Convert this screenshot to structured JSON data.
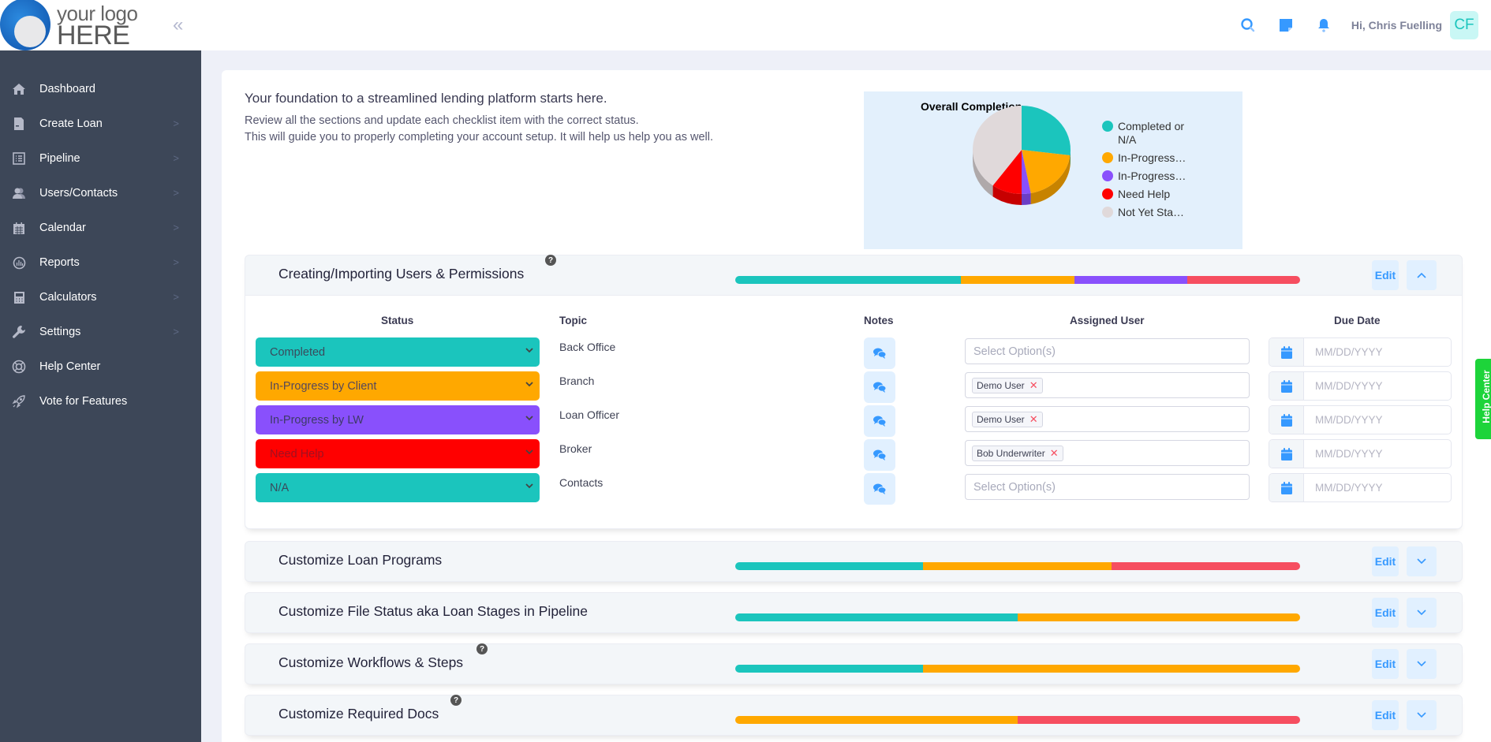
{
  "header": {
    "logo_line1": "your logo",
    "logo_line2": "HERE",
    "collapse_icon": "double-chevron-left",
    "greeting": "Hi, Chris Fuelling",
    "avatar_initials": "CF",
    "icons": [
      "search-icon",
      "sticky-note-icon",
      "bell-icon"
    ]
  },
  "sidebar": {
    "items": [
      {
        "label": "Dashboard",
        "icon": "home-icon",
        "has_submenu": false
      },
      {
        "label": "Create Loan",
        "icon": "document-icon",
        "has_submenu": true
      },
      {
        "label": "Pipeline",
        "icon": "list-icon",
        "has_submenu": true
      },
      {
        "label": "Users/Contacts",
        "icon": "users-icon",
        "has_submenu": true
      },
      {
        "label": "Calendar",
        "icon": "calendar-icon",
        "has_submenu": true
      },
      {
        "label": "Reports",
        "icon": "chart-icon",
        "has_submenu": true
      },
      {
        "label": "Calculators",
        "icon": "calculator-icon",
        "has_submenu": true
      },
      {
        "label": "Settings",
        "icon": "wrench-icon",
        "has_submenu": true
      },
      {
        "label": "Help Center",
        "icon": "lifebuoy-icon",
        "has_submenu": false
      },
      {
        "label": "Vote for Features",
        "icon": "rocket-icon",
        "has_submenu": false
      }
    ]
  },
  "intro": {
    "title": "Your foundation to a streamlined lending platform starts here.",
    "line1": "Review all the sections and update each checklist item with the correct status.",
    "line2": "This will guide you to properly completing your account setup. It will help us help you as well."
  },
  "chart_data": {
    "type": "pie",
    "title": "Overall Completion",
    "legend_position": "right",
    "categories": [
      "Completed or N/A",
      "In-Progress…",
      "In-Progress…",
      "Need Help",
      "Not Yet Sta…"
    ],
    "values": [
      27,
      20,
      3,
      10,
      40
    ],
    "colors": [
      "#1bc5bd",
      "#ffa800",
      "#8950fc",
      "#ff0000",
      "#e0d9da"
    ]
  },
  "colors": {
    "completed": "#1bc5bd",
    "in_progress_client": "#ffa800",
    "in_progress_lw": "#8950fc",
    "need_help": "#ff0000",
    "bar_red": "#f64e60",
    "accent": "#3699ff"
  },
  "sections": [
    {
      "title": "Creating/Importing Users & Permissions",
      "has_help": true,
      "expanded": true,
      "edit_label": "Edit",
      "progress": [
        {
          "status": "completed",
          "pct": 40
        },
        {
          "status": "in_progress_client",
          "pct": 20
        },
        {
          "status": "in_progress_lw",
          "pct": 20
        },
        {
          "status": "bar_red",
          "pct": 20
        }
      ],
      "columns": {
        "status": "Status",
        "topic": "Topic",
        "notes": "Notes",
        "assigned": "Assigned User",
        "due": "Due Date"
      },
      "rows": [
        {
          "status": "Completed",
          "status_key": "completed",
          "topic": "Back Office",
          "assigned": [],
          "assigned_placeholder": "Select Option(s)",
          "due_placeholder": "MM/DD/YYYY"
        },
        {
          "status": "In-Progress by Client",
          "status_key": "in_progress_client",
          "topic": "Branch",
          "assigned": [
            "Demo User"
          ],
          "assigned_placeholder": "",
          "due_placeholder": "MM/DD/YYYY"
        },
        {
          "status": "In-Progress by LW",
          "status_key": "in_progress_lw",
          "topic": "Loan Officer",
          "assigned": [
            "Demo User"
          ],
          "assigned_placeholder": "",
          "due_placeholder": "MM/DD/YYYY"
        },
        {
          "status": "Need Help",
          "status_key": "need_help",
          "topic": "Broker",
          "assigned": [
            "Bob Underwriter"
          ],
          "assigned_placeholder": "",
          "due_placeholder": "MM/DD/YYYY"
        },
        {
          "status": "N/A",
          "status_key": "completed",
          "topic": "Contacts",
          "assigned": [],
          "assigned_placeholder": "Select Option(s)",
          "due_placeholder": "MM/DD/YYYY"
        }
      ]
    },
    {
      "title": "Customize Loan Programs",
      "has_help": false,
      "expanded": false,
      "edit_label": "Edit",
      "progress": [
        {
          "status": "completed",
          "pct": 33.3
        },
        {
          "status": "in_progress_client",
          "pct": 33.3
        },
        {
          "status": "bar_red",
          "pct": 33.4
        }
      ]
    },
    {
      "title": "Customize File Status aka Loan Stages in Pipeline",
      "has_help": false,
      "expanded": false,
      "edit_label": "Edit",
      "progress": [
        {
          "status": "completed",
          "pct": 50
        },
        {
          "status": "in_progress_client",
          "pct": 50
        }
      ]
    },
    {
      "title": "Customize Workflows & Steps",
      "has_help": true,
      "expanded": false,
      "edit_label": "Edit",
      "progress": [
        {
          "status": "completed",
          "pct": 33.3
        },
        {
          "status": "in_progress_client",
          "pct": 66.7
        }
      ]
    },
    {
      "title": "Customize Required Docs",
      "has_help": true,
      "expanded": false,
      "edit_label": "Edit",
      "progress": [
        {
          "status": "in_progress_client",
          "pct": 50
        },
        {
          "status": "bar_red",
          "pct": 50
        }
      ]
    }
  ],
  "help_tab": {
    "label": "Help Center"
  }
}
